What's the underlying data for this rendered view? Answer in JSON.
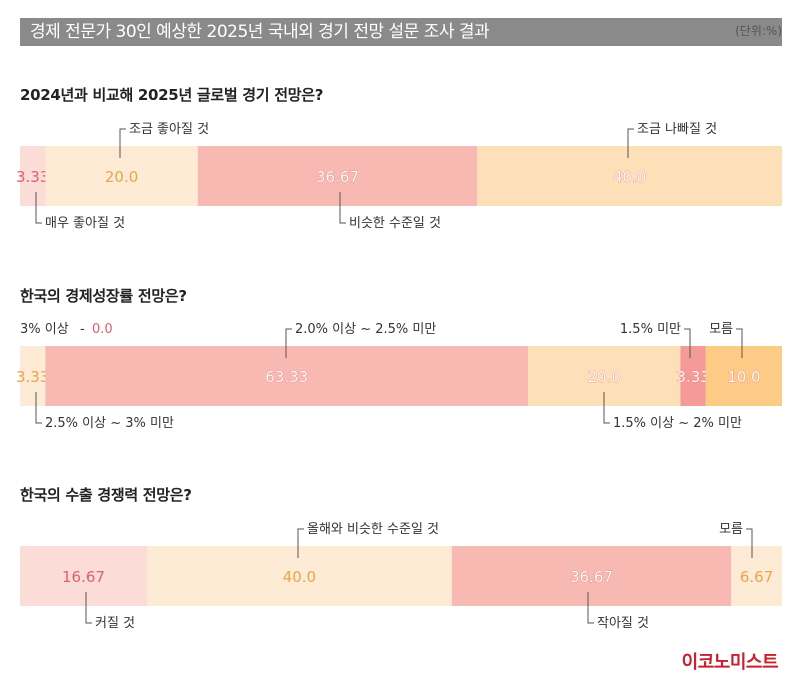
{
  "header": {
    "title": "경제 전문가 30인 예상한 2025년 국내외 경기 전망 설문 조사 결과",
    "unit": "(단위:%)"
  },
  "brand": "이코노미스트",
  "colors": {
    "header_bg": "#8a8a8a",
    "light_pink": "#fcdcd7",
    "cream": "#fdebd5",
    "salmon": "#f7b9b1",
    "peach": "#fde0b7",
    "red": "#f49b97",
    "orange": "#fdcb85",
    "value_pink": "#e0606a",
    "value_orange": "#eda34a",
    "value_white": "#ffffff"
  },
  "chart_data": [
    {
      "type": "bar",
      "orientation": "stacked-horizontal",
      "title": "2024년과 비교해 2025년 글로벌 경기 전망은?",
      "series": [
        {
          "name": "매우 좋아질 것",
          "value": 3.33,
          "value_label": "3.33"
        },
        {
          "name": "조금 좋아질 것",
          "value": 20.0,
          "value_label": "20.0"
        },
        {
          "name": "비슷한 수준일 것",
          "value": 36.67,
          "value_label": "36.67"
        },
        {
          "name": "조금 나빠질 것",
          "value": 40.0,
          "value_label": "40.0"
        }
      ]
    },
    {
      "type": "bar",
      "orientation": "stacked-horizontal",
      "title": "한국의 경제성장률 전망은?",
      "zero_category": {
        "name": "3% 이상",
        "value_label": "0.0"
      },
      "series": [
        {
          "name": "2.5% 이상 ~ 3% 미만",
          "value": 3.33,
          "value_label": "3.33"
        },
        {
          "name": "2.0% 이상 ~ 2.5% 미만",
          "value": 63.33,
          "value_label": "63.33"
        },
        {
          "name": "1.5% 이상 ~ 2% 미만",
          "value": 20.0,
          "value_label": "20.0"
        },
        {
          "name": "1.5% 미만",
          "value": 3.33,
          "value_label": "3.33"
        },
        {
          "name": "모름",
          "value": 10.0,
          "value_label": "10.0"
        }
      ]
    },
    {
      "type": "bar",
      "orientation": "stacked-horizontal",
      "title": "한국의 수출 경쟁력 전망은?",
      "series": [
        {
          "name": "커질 것",
          "value": 16.67,
          "value_label": "16.67"
        },
        {
          "name": "올해와 비슷한 수준일 것",
          "value": 40.0,
          "value_label": "40.0"
        },
        {
          "name": "작아질 것",
          "value": 36.67,
          "value_label": "36.67"
        },
        {
          "name": "모름",
          "value": 6.67,
          "value_label": "6.67"
        }
      ]
    }
  ]
}
